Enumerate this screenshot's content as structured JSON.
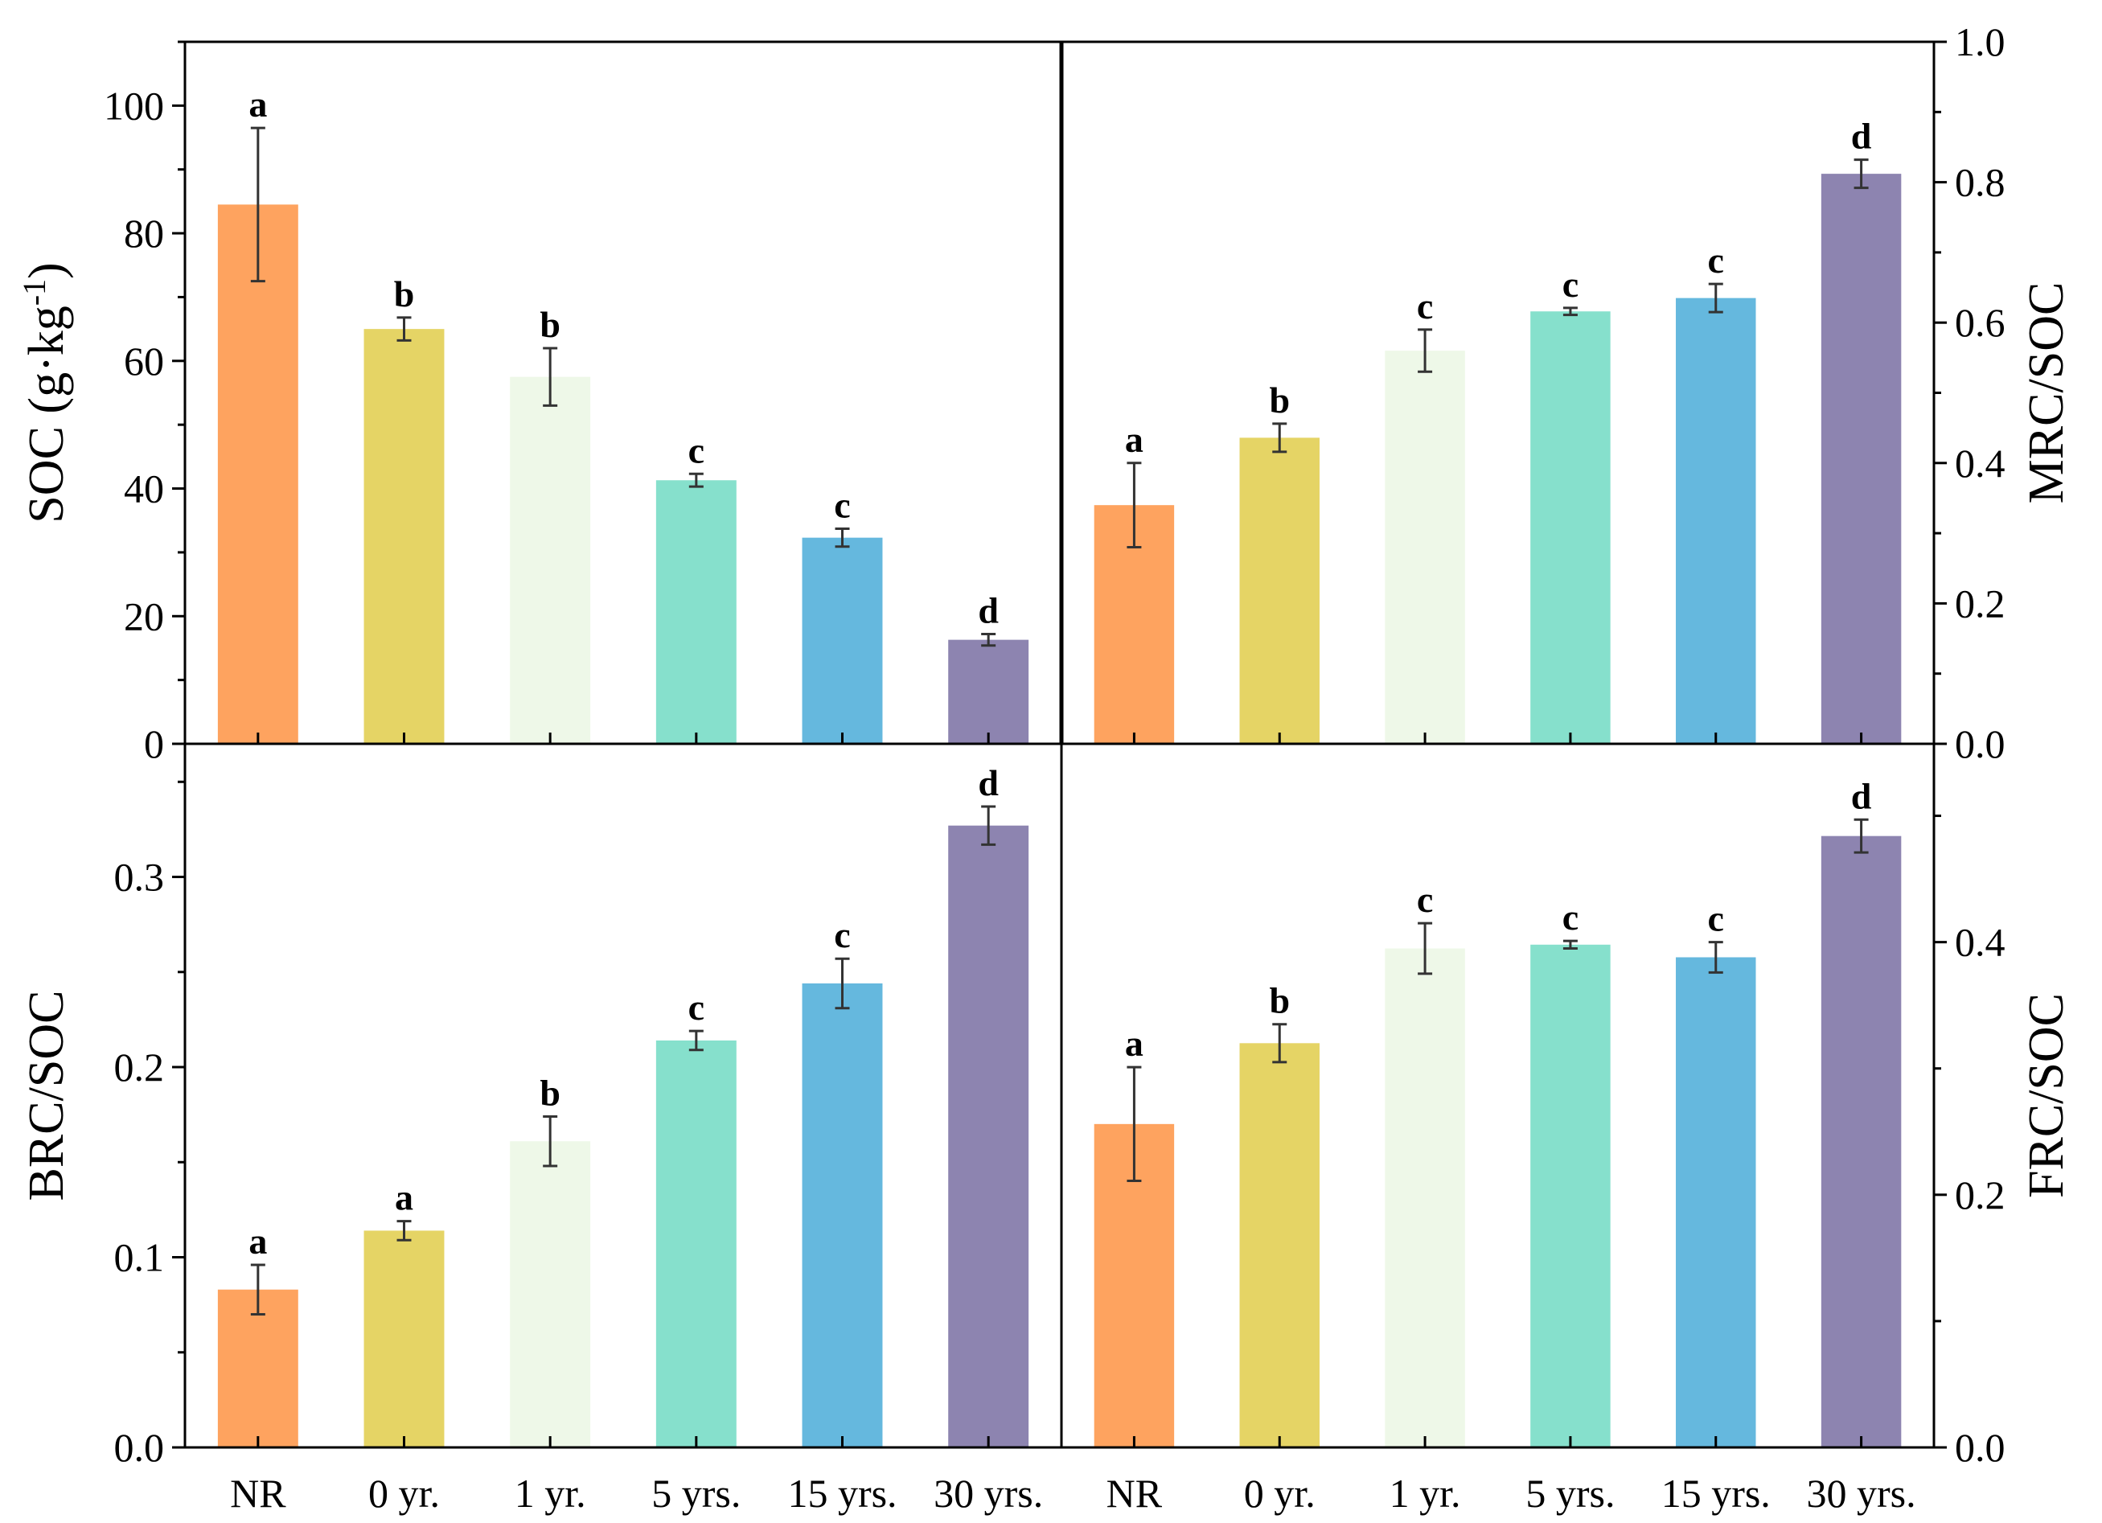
{
  "colors": {
    "bars": [
      "#FEA35F",
      "#E5D465",
      "#EEF8E8",
      "#86E0CC",
      "#65B8DE",
      "#8D84B0"
    ],
    "error_bar": "#333333",
    "axis": "#000000"
  },
  "chart_data": [
    {
      "type": "bar",
      "panel": "top-left",
      "categories": [
        "NR",
        "0 yr.",
        "1 yr.",
        "5 yrs.",
        "15 yrs.",
        "30 yrs."
      ],
      "values": [
        84.5,
        65.0,
        57.5,
        41.3,
        32.3,
        16.3
      ],
      "errors": [
        12.0,
        1.8,
        4.5,
        1.0,
        1.4,
        0.9
      ],
      "significance": [
        "a",
        "b",
        "b",
        "c",
        "c",
        "d"
      ],
      "ylabel": "SOC (g·kg",
      "ylabel_superscript": "-1",
      "ylabel_close": ")",
      "ylim": [
        0,
        110
      ],
      "yticks": [
        0,
        20,
        40,
        60,
        80,
        100
      ],
      "ytick_labels": [
        "0",
        "20",
        "40",
        "60",
        "80",
        "100"
      ],
      "y_axis_side": "left",
      "show_category_labels": false
    },
    {
      "type": "bar",
      "panel": "top-right",
      "categories": [
        "NR",
        "0 yr.",
        "1 yr.",
        "5 yrs.",
        "15 yrs.",
        "30 yrs."
      ],
      "values": [
        0.34,
        0.436,
        0.56,
        0.616,
        0.635,
        0.812
      ],
      "errors": [
        0.06,
        0.02,
        0.03,
        0.005,
        0.02,
        0.02
      ],
      "significance": [
        "a",
        "b",
        "c",
        "c",
        "c",
        "d"
      ],
      "ylabel": "MRC/SOC",
      "ylim": [
        0,
        1.0
      ],
      "yticks": [
        0.0,
        0.2,
        0.4,
        0.6,
        0.8,
        1.0
      ],
      "ytick_labels": [
        "0.0",
        "0.2",
        "0.4",
        "0.6",
        "0.8",
        "1.0"
      ],
      "y_axis_side": "right",
      "show_category_labels": false
    },
    {
      "type": "bar",
      "panel": "bottom-left",
      "categories": [
        "NR",
        "0 yr.",
        "1 yr.",
        "5 yrs.",
        "15 yrs.",
        "30 yrs."
      ],
      "values": [
        0.083,
        0.114,
        0.161,
        0.214,
        0.244,
        0.327
      ],
      "errors": [
        0.013,
        0.005,
        0.013,
        0.005,
        0.013,
        0.01
      ],
      "significance": [
        "a",
        "a",
        "b",
        "c",
        "c",
        "d"
      ],
      "ylabel": "BRC/SOC",
      "ylim": [
        0,
        0.37
      ],
      "yticks": [
        0.0,
        0.1,
        0.2,
        0.3
      ],
      "ytick_labels": [
        "0.0",
        "0.1",
        "0.2",
        "0.3"
      ],
      "y_axis_side": "left",
      "show_category_labels": true
    },
    {
      "type": "bar",
      "panel": "bottom-right",
      "categories": [
        "NR",
        "0 yr.",
        "1 yr.",
        "5 yrs.",
        "15 yrs.",
        "30 yrs."
      ],
      "values": [
        0.256,
        0.32,
        0.395,
        0.398,
        0.388,
        0.484
      ],
      "errors": [
        0.045,
        0.015,
        0.02,
        0.003,
        0.012,
        0.013
      ],
      "significance": [
        "a",
        "b",
        "c",
        "c",
        "c",
        "d"
      ],
      "ylabel": "FRC/SOC",
      "ylim": [
        0,
        0.557
      ],
      "yticks": [
        0.0,
        0.2,
        0.4
      ],
      "ytick_labels": [
        "0.0",
        "0.2",
        "0.4"
      ],
      "y_axis_side": "right",
      "show_category_labels": true
    }
  ]
}
